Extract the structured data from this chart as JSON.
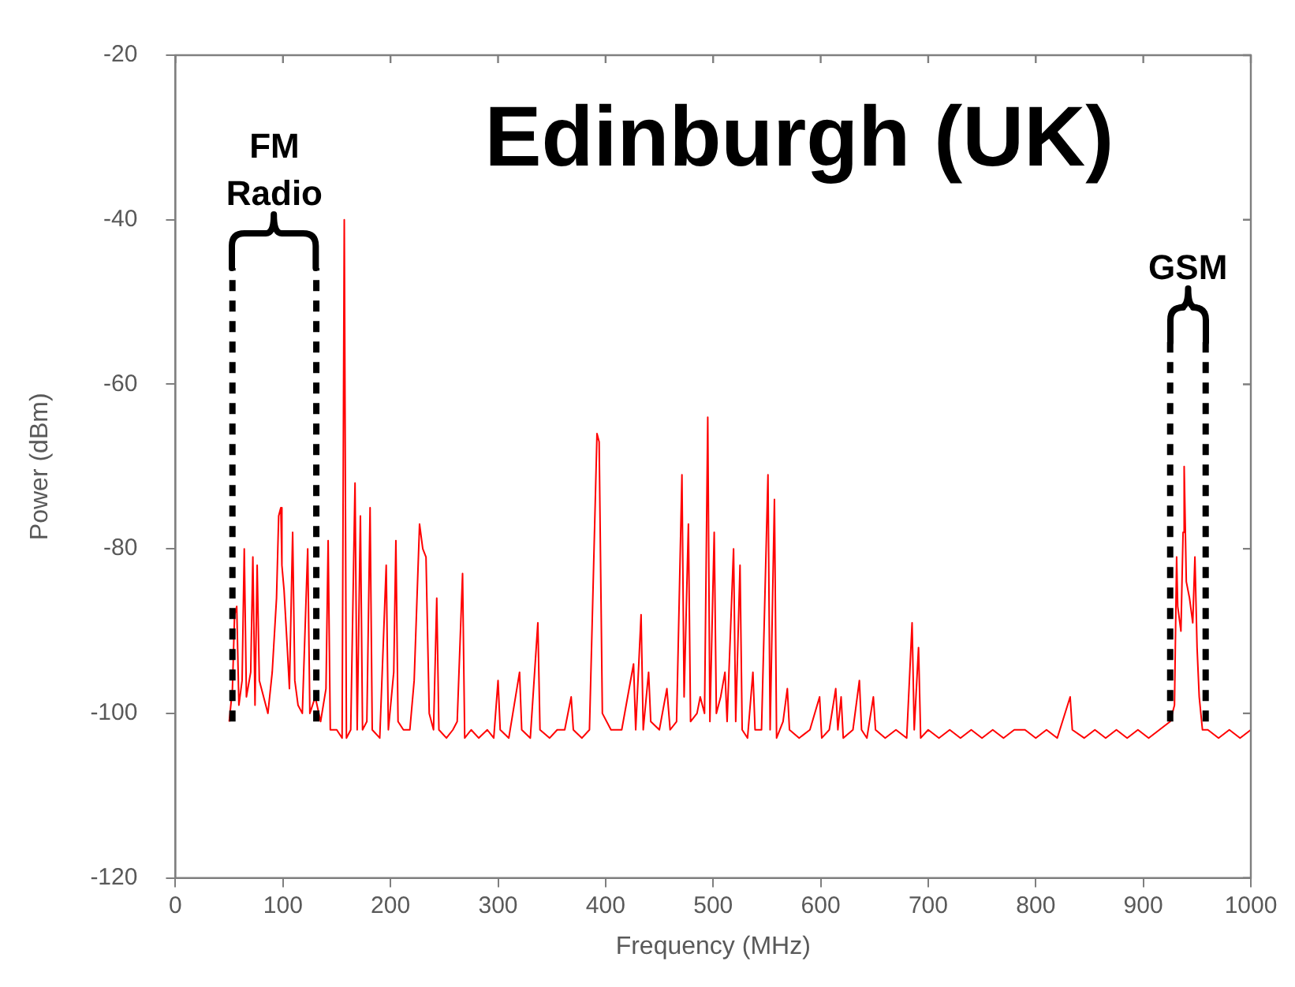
{
  "chart_data": {
    "type": "line",
    "title": "Edinburgh (UK)",
    "xlabel": "Frequency (MHz)",
    "ylabel": "Power (dBm)",
    "xlim": [
      0,
      1000
    ],
    "xticks": [
      0,
      100,
      200,
      300,
      400,
      500,
      600,
      700,
      800,
      900,
      1000
    ],
    "ylim": [
      -120,
      -20
    ],
    "yticks": [
      -120,
      -100,
      -80,
      -60,
      -40,
      -20
    ],
    "grid": false,
    "legend": false,
    "marker": "none",
    "line_style": "solid",
    "series": [
      {
        "color": "#ff0000",
        "x": [
          50,
          53,
          55,
          57,
          59,
          62,
          64,
          66,
          70,
          72,
          74,
          76,
          78,
          82,
          86,
          90,
          94,
          96,
          98,
          99,
          101,
          104,
          106,
          109,
          111,
          114,
          118,
          123,
          125,
          130,
          135,
          140,
          142,
          144,
          150,
          155,
          157,
          159,
          163,
          167,
          169,
          172,
          174,
          178,
          181,
          183,
          190,
          196,
          198,
          203,
          205,
          207,
          212,
          218,
          222,
          227,
          230,
          233,
          236,
          240,
          243,
          245,
          252,
          258,
          262,
          267,
          269,
          275,
          282,
          290,
          296,
          300,
          302,
          310,
          320,
          322,
          330,
          337,
          339,
          348,
          355,
          362,
          368,
          370,
          378,
          385,
          392,
          394,
          397,
          405,
          415,
          426,
          428,
          433,
          435,
          440,
          442,
          450,
          457,
          460,
          466,
          471,
          473,
          477,
          479,
          485,
          488,
          492,
          495,
          497,
          501,
          503,
          507,
          511,
          513,
          519,
          521,
          525,
          527,
          532,
          537,
          539,
          545,
          551,
          553,
          557,
          559,
          565,
          569,
          571,
          580,
          590,
          599,
          601,
          608,
          614,
          616,
          619,
          621,
          630,
          636,
          638,
          643,
          649,
          651,
          660,
          670,
          680,
          685,
          687,
          691,
          693,
          700,
          710,
          720,
          730,
          740,
          750,
          760,
          770,
          780,
          790,
          800,
          810,
          820,
          832,
          834,
          845,
          855,
          865,
          875,
          885,
          895,
          905,
          915,
          925,
          929,
          931,
          932,
          935,
          937,
          938,
          940,
          943,
          946,
          948,
          950,
          952,
          955,
          960,
          970,
          980,
          990,
          1000
        ],
        "values": [
          -101,
          -97,
          -88,
          -87,
          -99,
          -96,
          -80,
          -98,
          -95,
          -81,
          -99,
          -82,
          -96,
          -98,
          -100,
          -95,
          -86,
          -76,
          -75,
          -82,
          -85,
          -92,
          -97,
          -78,
          -96,
          -99,
          -100,
          -80,
          -100,
          -98,
          -101,
          -97,
          -79,
          -102,
          -102,
          -103,
          -40,
          -103,
          -102,
          -72,
          -102,
          -76,
          -102,
          -101,
          -75,
          -102,
          -103,
          -82,
          -102,
          -95,
          -79,
          -101,
          -102,
          -102,
          -96,
          -77,
          -80,
          -81,
          -100,
          -102,
          -86,
          -102,
          -103,
          -102,
          -101,
          -83,
          -103,
          -102,
          -103,
          -102,
          -103,
          -96,
          -102,
          -103,
          -95,
          -102,
          -103,
          -89,
          -102,
          -103,
          -102,
          -102,
          -98,
          -102,
          -103,
          -102,
          -66,
          -67,
          -100,
          -102,
          -102,
          -94,
          -102,
          -88,
          -102,
          -95,
          -101,
          -102,
          -97,
          -102,
          -101,
          -71,
          -98,
          -77,
          -101,
          -100,
          -98,
          -100,
          -64,
          -101,
          -78,
          -100,
          -98,
          -95,
          -101,
          -80,
          -101,
          -82,
          -102,
          -103,
          -95,
          -102,
          -102,
          -71,
          -102,
          -74,
          -103,
          -101,
          -97,
          -102,
          -103,
          -102,
          -98,
          -103,
          -102,
          -97,
          -102,
          -98,
          -103,
          -102,
          -96,
          -102,
          -103,
          -98,
          -102,
          -103,
          -102,
          -103,
          -89,
          -102,
          -92,
          -103,
          -102,
          -103,
          -102,
          -103,
          -102,
          -103,
          -102,
          -103,
          -102,
          -102,
          -103,
          -102,
          -103,
          -98,
          -102,
          -103,
          -102,
          -103,
          -102,
          -103,
          -102,
          -103,
          -102,
          -101,
          -99,
          -81,
          -87,
          -90,
          -78,
          -70,
          -84,
          -86,
          -89,
          -81,
          -92,
          -98,
          -102,
          -102,
          -103,
          -102,
          -103,
          -102
        ]
      }
    ],
    "ref_lines": [
      {
        "axis": "x",
        "value": 53,
        "color": "#000000",
        "line_style": "dashed"
      },
      {
        "axis": "x",
        "value": 131,
        "color": "#000000",
        "line_style": "dashed"
      },
      {
        "axis": "x",
        "value": 925,
        "color": "#000000",
        "line_style": "dashed"
      },
      {
        "axis": "x",
        "value": 958,
        "color": "#000000",
        "line_style": "dashed"
      }
    ],
    "annotations": [
      "FM Radio",
      "GSM"
    ]
  }
}
